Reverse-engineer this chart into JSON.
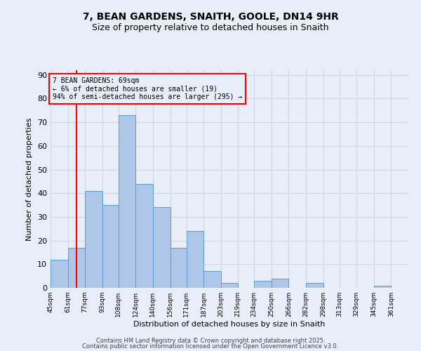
{
  "title1": "7, BEAN GARDENS, SNAITH, GOOLE, DN14 9HR",
  "title2": "Size of property relative to detached houses in Snaith",
  "xlabel": "Distribution of detached houses by size in Snaith",
  "ylabel": "Number of detached properties",
  "annotation_line1": "7 BEAN GARDENS: 69sqm",
  "annotation_line2": "← 6% of detached houses are smaller (19)",
  "annotation_line3": "94% of semi-detached houses are larger (295) →",
  "bar_left_edges": [
    45,
    61,
    77,
    93,
    108,
    124,
    140,
    156,
    171,
    187,
    203,
    219,
    234,
    250,
    266,
    282,
    298,
    313,
    329,
    345
  ],
  "bar_widths": [
    16,
    16,
    16,
    15,
    16,
    16,
    16,
    15,
    16,
    16,
    16,
    15,
    16,
    16,
    16,
    16,
    15,
    16,
    16,
    16
  ],
  "bar_heights": [
    12,
    17,
    41,
    35,
    73,
    44,
    34,
    17,
    24,
    7,
    2,
    0,
    3,
    4,
    0,
    2,
    0,
    0,
    0,
    1
  ],
  "tick_labels": [
    "45sqm",
    "61sqm",
    "77sqm",
    "93sqm",
    "108sqm",
    "124sqm",
    "140sqm",
    "156sqm",
    "171sqm",
    "187sqm",
    "203sqm",
    "219sqm",
    "234sqm",
    "250sqm",
    "266sqm",
    "282sqm",
    "298sqm",
    "313sqm",
    "329sqm",
    "345sqm",
    "361sqm"
  ],
  "tick_positions": [
    45,
    61,
    77,
    93,
    108,
    124,
    140,
    156,
    171,
    187,
    203,
    219,
    234,
    250,
    266,
    282,
    298,
    313,
    329,
    345,
    361
  ],
  "bar_color": "#aec6e8",
  "bar_edge_color": "#5a9fd4",
  "red_line_x": 69,
  "ylim": [
    0,
    92
  ],
  "yticks": [
    0,
    10,
    20,
    30,
    40,
    50,
    60,
    70,
    80,
    90
  ],
  "grid_color": "#d0d8e8",
  "background_color": "#e8eef8",
  "footer1": "Contains HM Land Registry data © Crown copyright and database right 2025.",
  "footer2": "Contains public sector information licensed under the Open Government Licence v3.0."
}
